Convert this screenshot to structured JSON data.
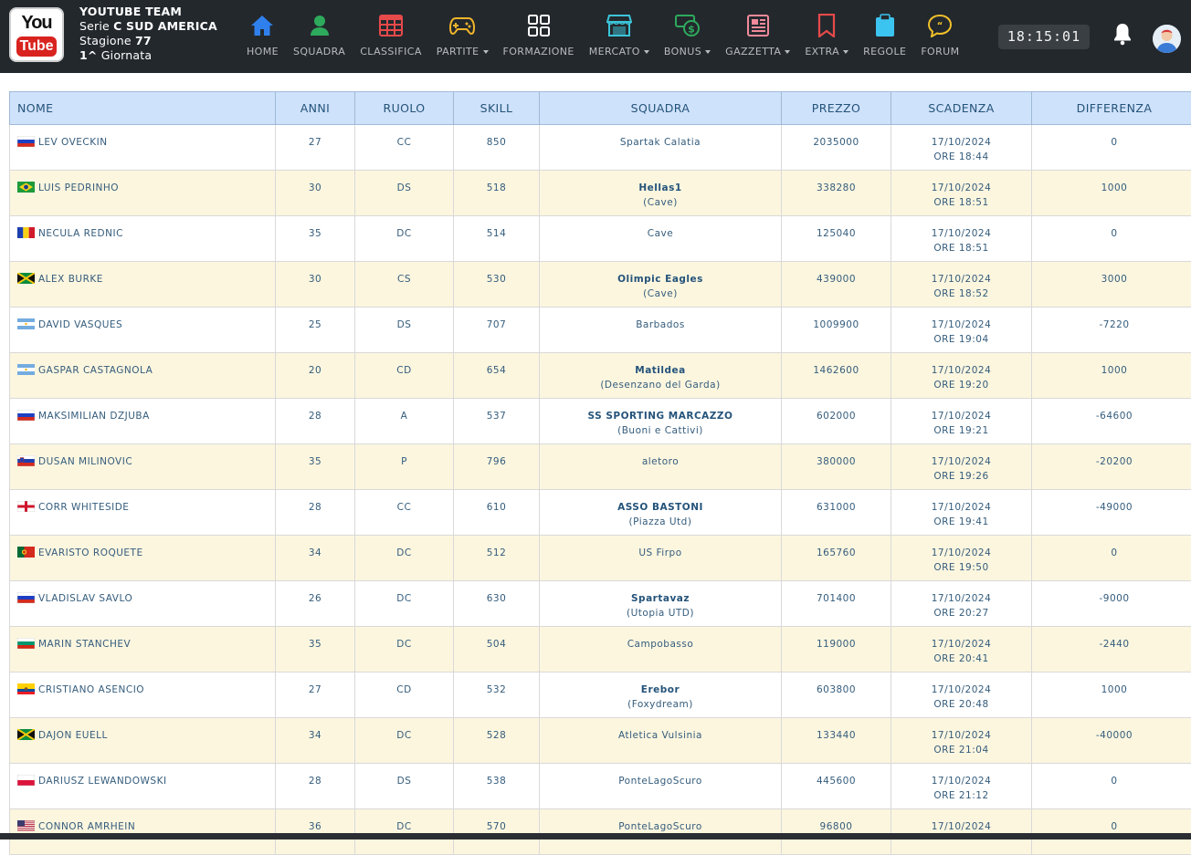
{
  "header": {
    "logo": {
      "top": "You",
      "bottom": "Tube"
    },
    "team_name": "YOUTUBE TEAM",
    "serie_label": "Serie",
    "serie_value": "C SUD AMERICA",
    "stagione_label": "Stagione",
    "stagione_value": "77",
    "giornata_value": "1^",
    "giornata_label": "Giornata",
    "clock": "18:15:01"
  },
  "nav": [
    {
      "label": "HOME",
      "icon": "home-icon",
      "color": "#2f80ed",
      "dropdown": false
    },
    {
      "label": "SQUADRA",
      "icon": "user-icon",
      "color": "#2eaa5c",
      "dropdown": false
    },
    {
      "label": "CLASSIFICA",
      "icon": "table-icon",
      "color": "#e64a4a",
      "dropdown": false
    },
    {
      "label": "PARTITE",
      "icon": "gamepad-icon",
      "color": "#f2b52a",
      "dropdown": true
    },
    {
      "label": "FORMAZIONE",
      "icon": "grid-icon",
      "color": "#ffffff",
      "dropdown": false
    },
    {
      "label": "MERCATO",
      "icon": "store-icon",
      "color": "#3cc4d8",
      "dropdown": true
    },
    {
      "label": "BONUS",
      "icon": "money-icon",
      "color": "#2eaa5c",
      "dropdown": true
    },
    {
      "label": "GAZZETTA",
      "icon": "newspaper-icon",
      "color": "#f08a9a",
      "dropdown": true
    },
    {
      "label": "EXTRA",
      "icon": "bookmark-icon",
      "color": "#e64a4a",
      "dropdown": true
    },
    {
      "label": "REGOLE",
      "icon": "clipboard-icon",
      "color": "#3cc4f0",
      "dropdown": false
    },
    {
      "label": "FORUM",
      "icon": "chat-icon",
      "color": "#f2c12a",
      "dropdown": false
    }
  ],
  "table": {
    "headers": [
      "NOME",
      "ANNI",
      "RUOLO",
      "SKILL",
      "SQUADRA",
      "PREZZO",
      "SCADENZA",
      "DIFFERENZA"
    ],
    "rows": [
      {
        "flag": "russia",
        "nome": "LEV OVECKIN",
        "anni": "27",
        "ruolo": "CC",
        "skill": "850",
        "squadra": "Spartak Calatia",
        "squadra_sub": "",
        "prezzo": "2035000",
        "data": "17/10/2024",
        "ore": "ORE 18:44",
        "differenza": "0"
      },
      {
        "flag": "brazil",
        "nome": "LUIS PEDRINHO",
        "anni": "30",
        "ruolo": "DS",
        "skill": "518",
        "squadra": "Hellas1",
        "squadra_sub": "(Cave)",
        "prezzo": "338280",
        "data": "17/10/2024",
        "ore": "ORE 18:51",
        "differenza": "1000"
      },
      {
        "flag": "romania",
        "nome": "NECULA REDNIC",
        "anni": "35",
        "ruolo": "DC",
        "skill": "514",
        "squadra": "Cave",
        "squadra_sub": "",
        "prezzo": "125040",
        "data": "17/10/2024",
        "ore": "ORE 18:51",
        "differenza": "0"
      },
      {
        "flag": "jamaica",
        "nome": "ALEX BURKE",
        "anni": "30",
        "ruolo": "CS",
        "skill": "530",
        "squadra": "Olimpic Eagles",
        "squadra_sub": "(Cave)",
        "prezzo": "439000",
        "data": "17/10/2024",
        "ore": "ORE 18:52",
        "differenza": "3000"
      },
      {
        "flag": "argentina",
        "nome": "DAVID VASQUES",
        "anni": "25",
        "ruolo": "DS",
        "skill": "707",
        "squadra": "Barbados",
        "squadra_sub": "",
        "prezzo": "1009900",
        "data": "17/10/2024",
        "ore": "ORE 19:04",
        "differenza": "-7220"
      },
      {
        "flag": "argentina",
        "nome": "GASPAR CASTAGNOLA",
        "anni": "20",
        "ruolo": "CD",
        "skill": "654",
        "squadra": "Matildea",
        "squadra_sub": "(Desenzano del Garda)",
        "prezzo": "1462600",
        "data": "17/10/2024",
        "ore": "ORE 19:20",
        "differenza": "1000"
      },
      {
        "flag": "russia",
        "nome": "MAKSIMILIAN DZJUBA",
        "anni": "28",
        "ruolo": "A",
        "skill": "537",
        "squadra": "SS SPORTING MARCAZZO",
        "squadra_sub": "(Buoni e Cattivi)",
        "prezzo": "602000",
        "data": "17/10/2024",
        "ore": "ORE 19:21",
        "differenza": "-64600"
      },
      {
        "flag": "slovenia",
        "nome": "DUSAN MILINOVIC",
        "anni": "35",
        "ruolo": "P",
        "skill": "796",
        "squadra": "aletoro",
        "squadra_sub": "",
        "prezzo": "380000",
        "data": "17/10/2024",
        "ore": "ORE 19:26",
        "differenza": "-20200"
      },
      {
        "flag": "england",
        "nome": "CORR WHITESIDE",
        "anni": "28",
        "ruolo": "CC",
        "skill": "610",
        "squadra": "ASSO BASTONI",
        "squadra_sub": "(Piazza Utd)",
        "prezzo": "631000",
        "data": "17/10/2024",
        "ore": "ORE 19:41",
        "differenza": "-49000"
      },
      {
        "flag": "portugal",
        "nome": "EVARISTO ROQUETE",
        "anni": "34",
        "ruolo": "DC",
        "skill": "512",
        "squadra": "US Firpo",
        "squadra_sub": "",
        "prezzo": "165760",
        "data": "17/10/2024",
        "ore": "ORE 19:50",
        "differenza": "0"
      },
      {
        "flag": "russia",
        "nome": "VLADISLAV SAVLO",
        "anni": "26",
        "ruolo": "DC",
        "skill": "630",
        "squadra": "Spartavaz",
        "squadra_sub": "(Utopia UTD)",
        "prezzo": "701400",
        "data": "17/10/2024",
        "ore": "ORE 20:27",
        "differenza": "-9000"
      },
      {
        "flag": "bulgaria",
        "nome": "MARIN STANCHEV",
        "anni": "35",
        "ruolo": "DC",
        "skill": "504",
        "squadra": "Campobasso",
        "squadra_sub": "",
        "prezzo": "119000",
        "data": "17/10/2024",
        "ore": "ORE 20:41",
        "differenza": "-2440"
      },
      {
        "flag": "ecuador",
        "nome": "CRISTIANO ASENCIO",
        "anni": "27",
        "ruolo": "CD",
        "skill": "532",
        "squadra": "Erebor",
        "squadra_sub": "(Foxydream)",
        "prezzo": "603800",
        "data": "17/10/2024",
        "ore": "ORE 20:48",
        "differenza": "1000"
      },
      {
        "flag": "jamaica",
        "nome": "DAJON EUELL",
        "anni": "34",
        "ruolo": "DC",
        "skill": "528",
        "squadra": "Atletica Vulsinia",
        "squadra_sub": "",
        "prezzo": "133440",
        "data": "17/10/2024",
        "ore": "ORE 21:04",
        "differenza": "-40000"
      },
      {
        "flag": "poland",
        "nome": "DARIUSZ LEWANDOWSKI",
        "anni": "28",
        "ruolo": "DS",
        "skill": "538",
        "squadra": "PonteLagoScuro",
        "squadra_sub": "",
        "prezzo": "445600",
        "data": "17/10/2024",
        "ore": "ORE 21:12",
        "differenza": "0"
      },
      {
        "flag": "usa",
        "nome": "CONNOR AMRHEIN",
        "anni": "36",
        "ruolo": "DC",
        "skill": "570",
        "squadra": "PonteLagoScuro",
        "squadra_sub": "",
        "prezzo": "96800",
        "data": "17/10/2024",
        "ore": "",
        "differenza": "0"
      }
    ]
  }
}
